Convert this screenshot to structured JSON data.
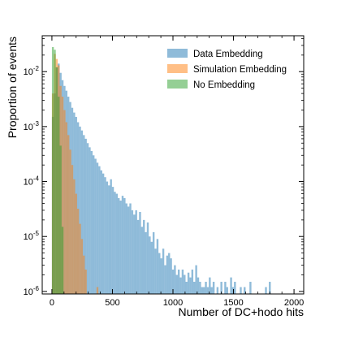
{
  "chart_data": {
    "type": "bar",
    "subtype": "histogram",
    "xlabel": "Number of DC+hodo hits",
    "ylabel": "Proportion of events",
    "xlim": [
      -80,
      2080
    ],
    "ylim": [
      9e-07,
      0.045
    ],
    "yscale": "log",
    "grid": false,
    "legend_position": "top-right",
    "bin_width": 16,
    "xticks": [
      {
        "value": 0,
        "label": "0"
      },
      {
        "value": 500,
        "label": "500"
      },
      {
        "value": 1000,
        "label": "1000"
      },
      {
        "value": 1500,
        "label": "1500"
      },
      {
        "value": 2000,
        "label": "2000"
      }
    ],
    "yticks": [
      {
        "value": 1e-06,
        "base": "10",
        "exp": "-6"
      },
      {
        "value": 1e-05,
        "base": "10",
        "exp": "-5"
      },
      {
        "value": 0.0001,
        "base": "10",
        "exp": "-4"
      },
      {
        "value": 0.001,
        "base": "10",
        "exp": "-3"
      },
      {
        "value": 0.01,
        "base": "10",
        "exp": "-2"
      }
    ],
    "series": [
      {
        "name": "Data Embedding",
        "color": "#1f77b4",
        "opacity": 0.5,
        "bins": [
          {
            "x": 0,
            "y": 0.0015
          },
          {
            "x": 16,
            "y": 0.004
          },
          {
            "x": 32,
            "y": 0.012
          },
          {
            "x": 48,
            "y": 0.014
          },
          {
            "x": 64,
            "y": 0.0095
          },
          {
            "x": 80,
            "y": 0.007
          },
          {
            "x": 96,
            "y": 0.0055
          },
          {
            "x": 112,
            "y": 0.0045
          },
          {
            "x": 128,
            "y": 0.0035
          },
          {
            "x": 144,
            "y": 0.0028
          },
          {
            "x": 160,
            "y": 0.0022
          },
          {
            "x": 176,
            "y": 0.0018
          },
          {
            "x": 192,
            "y": 0.0015
          },
          {
            "x": 208,
            "y": 0.0012
          },
          {
            "x": 224,
            "y": 0.001
          },
          {
            "x": 240,
            "y": 0.00085
          },
          {
            "x": 256,
            "y": 0.0007
          },
          {
            "x": 272,
            "y": 0.0006
          },
          {
            "x": 288,
            "y": 0.0005
          },
          {
            "x": 304,
            "y": 0.00042
          },
          {
            "x": 320,
            "y": 0.00036
          },
          {
            "x": 336,
            "y": 0.0003
          },
          {
            "x": 352,
            "y": 0.00026
          },
          {
            "x": 368,
            "y": 0.00022
          },
          {
            "x": 384,
            "y": 0.00019
          },
          {
            "x": 400,
            "y": 0.00016
          },
          {
            "x": 416,
            "y": 0.00014
          },
          {
            "x": 432,
            "y": 0.00012
          },
          {
            "x": 448,
            "y": 0.0001
          },
          {
            "x": 464,
            "y": 8.5e-05
          },
          {
            "x": 480,
            "y": 0.00011
          },
          {
            "x": 496,
            "y": 8e-05
          },
          {
            "x": 512,
            "y": 6.5e-05
          },
          {
            "x": 528,
            "y": 6e-05
          },
          {
            "x": 544,
            "y": 5e-05
          },
          {
            "x": 560,
            "y": 4.5e-05
          },
          {
            "x": 576,
            "y": 5.5e-05
          },
          {
            "x": 592,
            "y": 5e-05
          },
          {
            "x": 608,
            "y": 4e-05
          },
          {
            "x": 624,
            "y": 3.5e-05
          },
          {
            "x": 640,
            "y": 4e-05
          },
          {
            "x": 656,
            "y": 3e-05
          },
          {
            "x": 672,
            "y": 2.5e-05
          },
          {
            "x": 688,
            "y": 3e-05
          },
          {
            "x": 704,
            "y": 2e-05
          },
          {
            "x": 720,
            "y": 2.8e-05
          },
          {
            "x": 736,
            "y": 1.5e-05
          },
          {
            "x": 752,
            "y": 2e-05
          },
          {
            "x": 768,
            "y": 1.2e-05
          },
          {
            "x": 784,
            "y": 1.8e-05
          },
          {
            "x": 800,
            "y": 1e-05
          },
          {
            "x": 816,
            "y": 8e-06
          },
          {
            "x": 832,
            "y": 1.2e-05
          },
          {
            "x": 848,
            "y": 6e-06
          },
          {
            "x": 864,
            "y": 9e-06
          },
          {
            "x": 880,
            "y": 5e-06
          },
          {
            "x": 896,
            "y": 4e-06
          },
          {
            "x": 912,
            "y": 6e-06
          },
          {
            "x": 928,
            "y": 3e-06
          },
          {
            "x": 944,
            "y": 4.5e-06
          },
          {
            "x": 960,
            "y": 5e-06
          },
          {
            "x": 976,
            "y": 4e-06
          },
          {
            "x": 992,
            "y": 2.5e-06
          },
          {
            "x": 1008,
            "y": 3e-06
          },
          {
            "x": 1024,
            "y": 2e-06
          },
          {
            "x": 1040,
            "y": 2.5e-06
          },
          {
            "x": 1056,
            "y": 1.8e-06
          },
          {
            "x": 1072,
            "y": 2.5e-06
          },
          {
            "x": 1088,
            "y": 2e-06
          },
          {
            "x": 1104,
            "y": 1.5e-06
          },
          {
            "x": 1120,
            "y": 2.2e-06
          },
          {
            "x": 1136,
            "y": 1.8e-06
          },
          {
            "x": 1152,
            "y": 2.5e-06
          },
          {
            "x": 1168,
            "y": 1.5e-06
          },
          {
            "x": 1184,
            "y": 3e-06
          },
          {
            "x": 1200,
            "y": 1.8e-06
          },
          {
            "x": 1216,
            "y": 1.5e-06
          },
          {
            "x": 1232,
            "y": 1.2e-06
          },
          {
            "x": 1248,
            "y": 1.2e-06
          },
          {
            "x": 1264,
            "y": 1.5e-06
          },
          {
            "x": 1280,
            "y": 1.2e-06
          },
          {
            "x": 1296,
            "y": 1.8e-06
          },
          {
            "x": 1312,
            "y": 1.2e-06
          },
          {
            "x": 1328,
            "y": 1.5e-06
          },
          {
            "x": 1360,
            "y": 1.2e-06
          },
          {
            "x": 1392,
            "y": 1.5e-06
          },
          {
            "x": 1424,
            "y": 1.5e-06
          },
          {
            "x": 1440,
            "y": 1.2e-06
          },
          {
            "x": 1472,
            "y": 1.8e-06
          },
          {
            "x": 1488,
            "y": 1.2e-06
          },
          {
            "x": 1504,
            "y": 1.5e-06
          },
          {
            "x": 1552,
            "y": 1.2e-06
          },
          {
            "x": 1584,
            "y": 1.2e-06
          },
          {
            "x": 1632,
            "y": 1.5e-06
          },
          {
            "x": 1760,
            "y": 1.2e-06
          },
          {
            "x": 1792,
            "y": 1.5e-06
          }
        ]
      },
      {
        "name": "Simulation Embedding",
        "color": "#ff7f0e",
        "opacity": 0.5,
        "bins": [
          {
            "x": 0,
            "y": 0.004
          },
          {
            "x": 16,
            "y": 0.021
          },
          {
            "x": 32,
            "y": 0.017
          },
          {
            "x": 48,
            "y": 0.013
          },
          {
            "x": 64,
            "y": 0.0055
          },
          {
            "x": 80,
            "y": 0.0035
          },
          {
            "x": 96,
            "y": 0.002
          },
          {
            "x": 112,
            "y": 0.0012
          },
          {
            "x": 128,
            "y": 0.0007
          },
          {
            "x": 144,
            "y": 0.00038
          },
          {
            "x": 160,
            "y": 0.0002
          },
          {
            "x": 176,
            "y": 0.00011
          },
          {
            "x": 192,
            "y": 6e-05
          },
          {
            "x": 208,
            "y": 3.2e-05
          },
          {
            "x": 224,
            "y": 1.7e-05
          },
          {
            "x": 240,
            "y": 9e-06
          },
          {
            "x": 256,
            "y": 4.5e-06
          },
          {
            "x": 272,
            "y": 2.5e-06
          },
          {
            "x": 368,
            "y": 1.2e-06
          }
        ]
      },
      {
        "name": "No Embedding",
        "color": "#2ca02c",
        "opacity": 0.5,
        "bins": [
          {
            "x": 0,
            "y": 0.028
          },
          {
            "x": 16,
            "y": 0.025
          },
          {
            "x": 32,
            "y": 0.012
          },
          {
            "x": 48,
            "y": 0.0035
          },
          {
            "x": 64,
            "y": 0.00045
          },
          {
            "x": 80,
            "y": 1.5e-05
          }
        ]
      }
    ]
  }
}
